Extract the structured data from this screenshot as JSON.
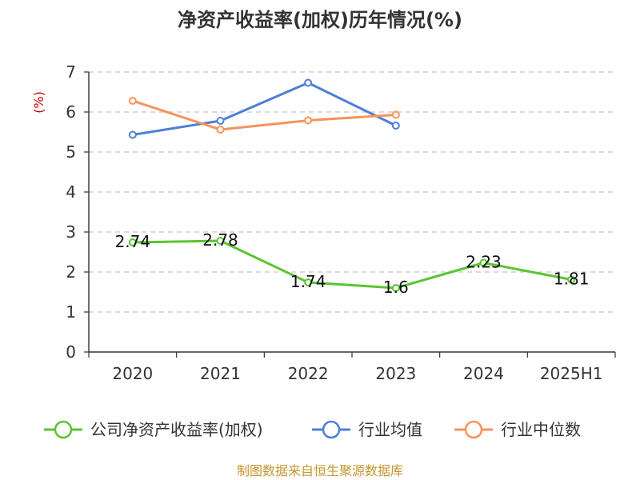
{
  "chart_data": {
    "type": "line",
    "title": "净资产收益率(加权)历年情况(%)",
    "ylabel": "(%)",
    "categories": [
      "2020",
      "2021",
      "2022",
      "2023",
      "2024",
      "2025H1"
    ],
    "ylim": [
      0,
      7
    ],
    "yticks": [
      "0",
      "1",
      "2",
      "3",
      "4",
      "5",
      "6",
      "7"
    ],
    "grid": true,
    "legend_position": "bottom",
    "series": [
      {
        "name": "公司净资产收益率(加权)",
        "color": "#5ac431",
        "values": [
          2.74,
          2.78,
          1.74,
          1.6,
          2.23,
          1.81
        ],
        "labels": [
          "2.74",
          "2.78",
          "1.74",
          "1.6",
          "2.23",
          "1.81"
        ]
      },
      {
        "name": "行业均值",
        "color": "#4d7fd6",
        "values": [
          5.43,
          5.78,
          6.73,
          5.66,
          null,
          null
        ]
      },
      {
        "name": "行业中位数",
        "color": "#f6935a",
        "values": [
          6.28,
          5.56,
          5.79,
          5.93,
          null,
          null
        ]
      }
    ]
  },
  "source": "制图数据来自恒生聚源数据库"
}
